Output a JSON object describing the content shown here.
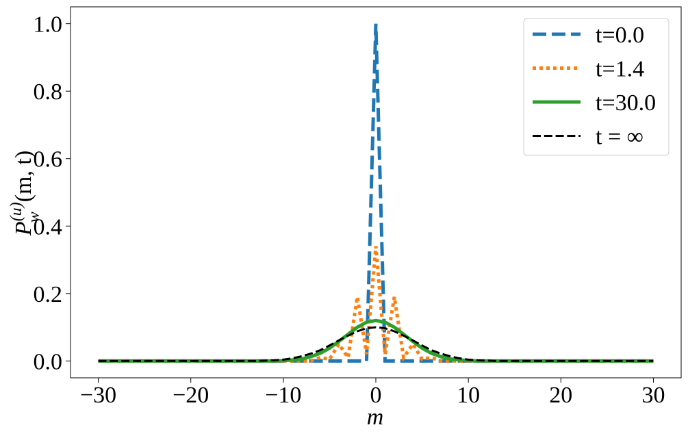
{
  "chart_data": {
    "type": "line",
    "xlabel": "m",
    "ylabel": {
      "base": "P",
      "sup": "(u)",
      "sub": "w",
      "rest": "(m, t)"
    },
    "x": [
      -30,
      -29,
      -28,
      -27,
      -26,
      -25,
      -24,
      -23,
      -22,
      -21,
      -20,
      -19,
      -18,
      -17,
      -16,
      -15,
      -14,
      -13,
      -12,
      -11,
      -10,
      -9,
      -8,
      -7,
      -6,
      -5,
      -4,
      -3,
      -2,
      -1,
      0,
      1,
      2,
      3,
      4,
      5,
      6,
      7,
      8,
      9,
      10,
      11,
      12,
      13,
      14,
      15,
      16,
      17,
      18,
      19,
      20,
      21,
      22,
      23,
      24,
      25,
      26,
      27,
      28,
      29,
      30
    ],
    "series": [
      {
        "name": "t=0.0",
        "color": "#1f77b4",
        "linestyle": "dashed",
        "linewidth": 5,
        "values": [
          0,
          0,
          0,
          0,
          0,
          0,
          0,
          0,
          0,
          0,
          0,
          0,
          0,
          0,
          0,
          0,
          0,
          0,
          0,
          0,
          0,
          0,
          0,
          0,
          0,
          0,
          0,
          0,
          0,
          0,
          1,
          0,
          0,
          0,
          0,
          0,
          0,
          0,
          0,
          0,
          0,
          0,
          0,
          0,
          0,
          0,
          0,
          0,
          0,
          0,
          0,
          0,
          0,
          0,
          0,
          0,
          0,
          0,
          0,
          0,
          0
        ]
      },
      {
        "name": "t=1.4",
        "color": "#ff7f0e",
        "linestyle": "dotted",
        "linewidth": 5,
        "values": [
          0,
          0,
          0,
          0,
          0,
          0,
          0,
          0,
          0,
          0,
          0,
          0,
          0,
          0,
          0,
          0,
          0,
          0,
          0,
          0,
          0,
          0,
          0,
          0,
          0.01,
          0.005,
          0.05,
          0.01,
          0.19,
          0.02,
          0.34,
          0.02,
          0.19,
          0.01,
          0.05,
          0.005,
          0.01,
          0,
          0,
          0,
          0,
          0,
          0,
          0,
          0,
          0,
          0,
          0,
          0,
          0,
          0,
          0,
          0,
          0,
          0,
          0,
          0,
          0,
          0,
          0,
          0
        ]
      },
      {
        "name": "t=30.0",
        "color": "#2ca02c",
        "linestyle": "solid",
        "linewidth": 5,
        "values": [
          0,
          0,
          0,
          0,
          0,
          0,
          0,
          0,
          0,
          0,
          0,
          0,
          0,
          0,
          0,
          0,
          0,
          0,
          0,
          0,
          0.001,
          0.003,
          0.006,
          0.013,
          0.023,
          0.038,
          0.058,
          0.079,
          0.1,
          0.115,
          0.12,
          0.115,
          0.1,
          0.079,
          0.058,
          0.038,
          0.023,
          0.013,
          0.006,
          0.003,
          0.001,
          0,
          0,
          0,
          0,
          0,
          0,
          0,
          0,
          0,
          0,
          0,
          0,
          0,
          0,
          0,
          0,
          0,
          0,
          0,
          0
        ]
      },
      {
        "name": "t = ∞",
        "color": "#000000",
        "linestyle": "dashed",
        "linewidth": 3,
        "values": [
          0,
          0,
          0,
          0,
          0,
          0,
          0,
          0,
          0,
          0,
          0,
          0,
          0,
          0,
          0,
          0,
          0,
          0,
          0.001,
          0.002,
          0.004,
          0.008,
          0.014,
          0.022,
          0.032,
          0.046,
          0.061,
          0.075,
          0.088,
          0.097,
          0.1,
          0.097,
          0.088,
          0.075,
          0.061,
          0.046,
          0.032,
          0.022,
          0.014,
          0.008,
          0.004,
          0.002,
          0.001,
          0,
          0,
          0,
          0,
          0,
          0,
          0,
          0,
          0,
          0,
          0,
          0,
          0,
          0,
          0,
          0,
          0,
          0
        ]
      }
    ],
    "xlim": [
      -33,
      33
    ],
    "ylim": [
      -0.05,
      1.05
    ],
    "xticks": [
      {
        "value": -30,
        "label": "−30"
      },
      {
        "value": -20,
        "label": "−20"
      },
      {
        "value": -10,
        "label": "−10"
      },
      0,
      10,
      20,
      30
    ],
    "yticks": [
      {
        "value": 0,
        "label": "0.0"
      },
      0.2,
      0.4,
      0.6,
      0.8,
      {
        "value": 1,
        "label": "1.0"
      }
    ],
    "legend": "upper right",
    "grid": false
  }
}
